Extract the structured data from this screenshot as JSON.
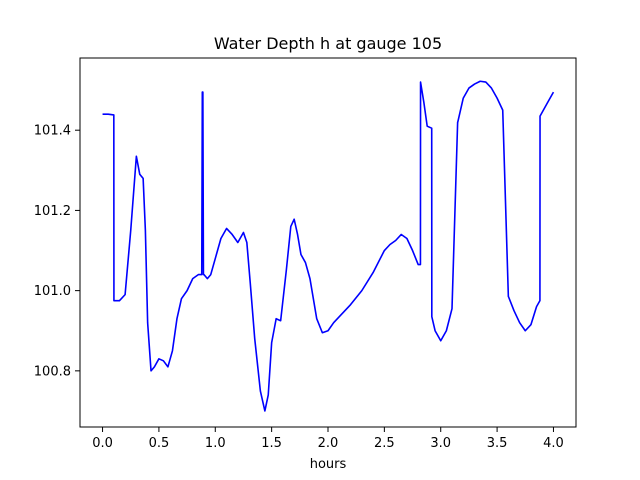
{
  "chart_data": {
    "type": "line",
    "title": "Water Depth h at gauge 105",
    "xlabel": "hours",
    "ylabel": "",
    "xlim": [
      -0.2,
      4.2
    ],
    "ylim": [
      100.66,
      101.58
    ],
    "xticks": [
      0.0,
      0.5,
      1.0,
      1.5,
      2.0,
      2.5,
      3.0,
      3.5,
      4.0
    ],
    "xtick_labels": [
      "0.0",
      "0.5",
      "1.0",
      "1.5",
      "2.0",
      "2.5",
      "3.0",
      "3.5",
      "4.0"
    ],
    "yticks": [
      100.8,
      101.0,
      101.2,
      101.4
    ],
    "ytick_labels": [
      "100.8",
      "101.0",
      "101.2",
      "101.4"
    ],
    "grid": false,
    "legend": "none",
    "series": [
      {
        "color": "#0000ff",
        "x": [
          0.0,
          0.05,
          0.1,
          0.101,
          0.15,
          0.2,
          0.25,
          0.3,
          0.33,
          0.36,
          0.38,
          0.4,
          0.43,
          0.46,
          0.5,
          0.54,
          0.58,
          0.62,
          0.66,
          0.7,
          0.75,
          0.8,
          0.85,
          0.88,
          0.885,
          0.89,
          0.895,
          0.9,
          0.93,
          0.96,
          1.0,
          1.05,
          1.1,
          1.15,
          1.2,
          1.25,
          1.28,
          1.31,
          1.35,
          1.4,
          1.44,
          1.47,
          1.5,
          1.54,
          1.58,
          1.63,
          1.67,
          1.7,
          1.73,
          1.76,
          1.8,
          1.84,
          1.9,
          1.95,
          2.0,
          2.05,
          2.1,
          2.15,
          2.2,
          2.3,
          2.4,
          2.5,
          2.55,
          2.6,
          2.65,
          2.7,
          2.75,
          2.8,
          2.82,
          2.821,
          2.85,
          2.88,
          2.92,
          2.921,
          2.95,
          3.0,
          3.05,
          3.1,
          3.15,
          3.151,
          3.2,
          3.25,
          3.3,
          3.35,
          3.4,
          3.45,
          3.5,
          3.55,
          3.6,
          3.601,
          3.65,
          3.7,
          3.75,
          3.8,
          3.85,
          3.88,
          3.881,
          3.95,
          4.0
        ],
        "y": [
          101.44,
          101.44,
          101.438,
          100.975,
          100.975,
          100.99,
          101.15,
          101.335,
          101.29,
          101.28,
          101.15,
          100.92,
          100.8,
          100.81,
          100.83,
          100.825,
          100.81,
          100.85,
          100.93,
          100.98,
          101.0,
          101.03,
          101.04,
          101.04,
          101.495,
          101.495,
          101.04,
          101.04,
          101.03,
          101.04,
          101.08,
          101.13,
          101.155,
          101.14,
          101.12,
          101.145,
          101.12,
          101.02,
          100.88,
          100.75,
          100.7,
          100.74,
          100.87,
          100.93,
          100.925,
          101.05,
          101.16,
          101.178,
          101.14,
          101.09,
          101.07,
          101.03,
          100.93,
          100.895,
          100.9,
          100.92,
          100.935,
          100.95,
          100.965,
          101.0,
          101.045,
          101.1,
          101.115,
          101.125,
          101.14,
          101.13,
          101.1,
          101.065,
          101.065,
          101.52,
          101.47,
          101.41,
          101.405,
          100.935,
          100.9,
          100.875,
          100.9,
          100.955,
          101.42,
          101.42,
          101.48,
          101.505,
          101.515,
          101.522,
          101.52,
          101.505,
          101.48,
          101.45,
          100.985,
          100.985,
          100.95,
          100.92,
          100.9,
          100.915,
          100.96,
          100.975,
          101.435,
          101.47,
          101.495
        ]
      }
    ]
  }
}
